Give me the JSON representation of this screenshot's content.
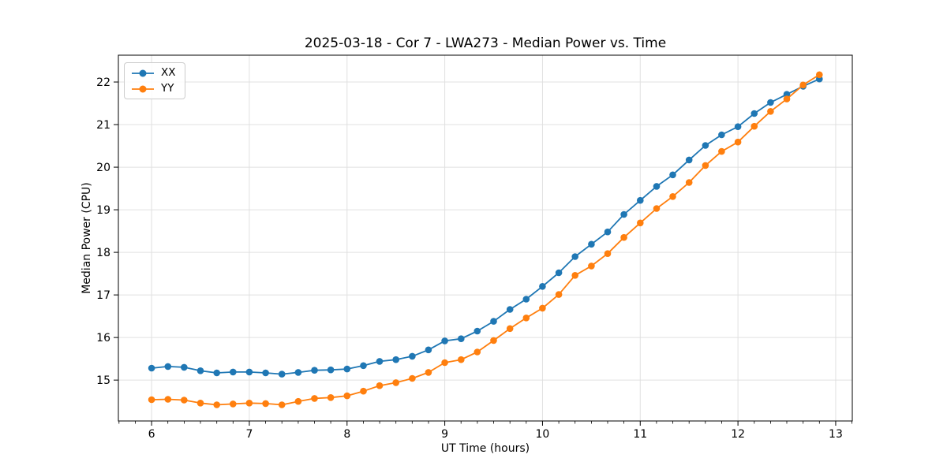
{
  "chart_data": {
    "type": "line",
    "title": "2025-03-18 - Cor 7 - LWA273 - Median Power vs. Time",
    "xlabel": "UT Time (hours)",
    "ylabel": "Median Power (CPU)",
    "xlim": [
      5.66,
      13.17
    ],
    "ylim": [
      14.04,
      22.63
    ],
    "xticks": [
      6,
      7,
      8,
      9,
      10,
      11,
      12,
      13
    ],
    "yticks": [
      15,
      16,
      17,
      18,
      19,
      20,
      21,
      22
    ],
    "x_minor_step": 0.166667,
    "grid": true,
    "grid_color": "#e0e0e0",
    "background_color": "#ffffff",
    "legend_position": "upper left",
    "x": [
      6.0,
      6.167,
      6.333,
      6.5,
      6.667,
      6.833,
      7.0,
      7.167,
      7.333,
      7.5,
      7.667,
      7.833,
      8.0,
      8.167,
      8.333,
      8.5,
      8.667,
      8.833,
      9.0,
      9.167,
      9.333,
      9.5,
      9.667,
      9.833,
      10.0,
      10.167,
      10.333,
      10.5,
      10.667,
      10.833,
      11.0,
      11.167,
      11.333,
      11.5,
      11.667,
      11.833,
      12.0,
      12.167,
      12.333,
      12.5,
      12.667,
      12.833
    ],
    "series": [
      {
        "name": "XX",
        "color": "#1f77b4",
        "values": [
          15.28,
          15.32,
          15.3,
          15.22,
          15.17,
          15.19,
          15.19,
          15.17,
          15.14,
          15.18,
          15.23,
          15.24,
          15.26,
          15.34,
          15.44,
          15.48,
          15.56,
          15.71,
          15.92,
          15.97,
          16.15,
          16.38,
          16.66,
          16.9,
          17.2,
          17.52,
          17.9,
          18.19,
          18.48,
          18.89,
          19.22,
          19.55,
          19.82,
          20.17,
          20.51,
          20.76,
          20.95,
          21.26,
          21.52,
          21.71,
          21.9,
          22.07
        ]
      },
      {
        "name": "YY",
        "color": "#ff7f0e",
        "values": [
          14.54,
          14.55,
          14.53,
          14.46,
          14.42,
          14.44,
          14.46,
          14.45,
          14.42,
          14.5,
          14.57,
          14.59,
          14.63,
          14.74,
          14.87,
          14.94,
          15.04,
          15.18,
          15.41,
          15.48,
          15.66,
          15.93,
          16.21,
          16.46,
          16.69,
          17.01,
          17.46,
          17.68,
          17.97,
          18.35,
          18.69,
          19.03,
          19.31,
          19.64,
          20.04,
          20.37,
          20.59,
          20.96,
          21.31,
          21.6,
          21.93,
          22.17
        ]
      }
    ]
  }
}
